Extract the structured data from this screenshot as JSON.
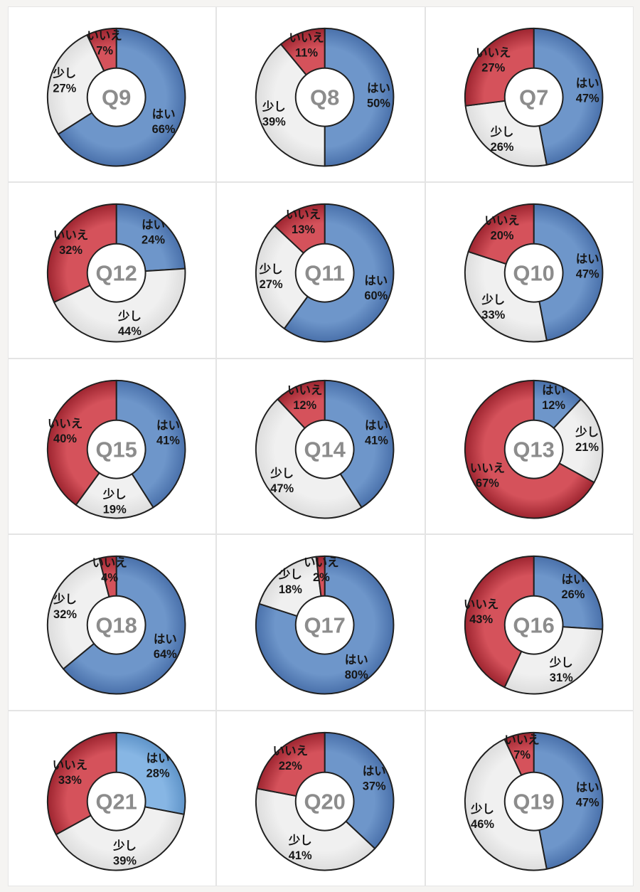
{
  "page": {
    "background": "#f5f4f2",
    "cell_background": "#ffffff",
    "grid_line_color": "#e4e4e4",
    "columns": 3,
    "rows": 5
  },
  "palette": {
    "blue": {
      "inner": "#6e96ca",
      "outer": "#4a71ab"
    },
    "lightblue": {
      "inner": "#87b6e4",
      "outer": "#5f94c9"
    },
    "gray": {
      "inner": "#f0f0f0",
      "outer": "#dddddd"
    },
    "red": {
      "inner": "#d5525b",
      "outer": "#9e2530"
    },
    "outline": "#202020",
    "center_text": "#8c8c8c",
    "label_text": "#161616"
  },
  "categories": [
    "はい",
    "少し",
    "いいえ"
  ],
  "chart_data": [
    {
      "type": "donut",
      "title": "Q9",
      "labels": [
        "はい",
        "少し",
        "いいえ"
      ],
      "values": [
        66,
        27,
        7
      ],
      "unit": "%",
      "colors": [
        "blue",
        "gray",
        "red"
      ]
    },
    {
      "type": "donut",
      "title": "Q8",
      "labels": [
        "はい",
        "少し",
        "いいえ"
      ],
      "values": [
        50,
        39,
        11
      ],
      "unit": "%",
      "colors": [
        "blue",
        "gray",
        "red"
      ]
    },
    {
      "type": "donut",
      "title": "Q7",
      "labels": [
        "はい",
        "少し",
        "いいえ"
      ],
      "values": [
        47,
        26,
        27
      ],
      "unit": "%",
      "colors": [
        "blue",
        "gray",
        "red"
      ]
    },
    {
      "type": "donut",
      "title": "Q12",
      "labels": [
        "はい",
        "少し",
        "いいえ"
      ],
      "values": [
        24,
        44,
        32
      ],
      "unit": "%",
      "colors": [
        "blue",
        "gray",
        "red"
      ]
    },
    {
      "type": "donut",
      "title": "Q11",
      "labels": [
        "はい",
        "少し",
        "いいえ"
      ],
      "values": [
        60,
        27,
        13
      ],
      "unit": "%",
      "colors": [
        "blue",
        "gray",
        "red"
      ]
    },
    {
      "type": "donut",
      "title": "Q10",
      "labels": [
        "はい",
        "少し",
        "いいえ"
      ],
      "values": [
        47,
        33,
        20
      ],
      "unit": "%",
      "colors": [
        "blue",
        "gray",
        "red"
      ]
    },
    {
      "type": "donut",
      "title": "Q15",
      "labels": [
        "はい",
        "少し",
        "いいえ"
      ],
      "values": [
        41,
        19,
        40
      ],
      "unit": "%",
      "colors": [
        "blue",
        "gray",
        "red"
      ]
    },
    {
      "type": "donut",
      "title": "Q14",
      "labels": [
        "はい",
        "少し",
        "いいえ"
      ],
      "values": [
        41,
        47,
        12
      ],
      "unit": "%",
      "colors": [
        "blue",
        "gray",
        "red"
      ]
    },
    {
      "type": "donut",
      "title": "Q13",
      "labels": [
        "はい",
        "少し",
        "いいえ"
      ],
      "values": [
        12,
        21,
        67
      ],
      "unit": "%",
      "colors": [
        "blue",
        "gray",
        "red"
      ]
    },
    {
      "type": "donut",
      "title": "Q18",
      "labels": [
        "はい",
        "少し",
        "いいえ"
      ],
      "values": [
        64,
        32,
        4
      ],
      "unit": "%",
      "colors": [
        "blue",
        "gray",
        "red"
      ]
    },
    {
      "type": "donut",
      "title": "Q17",
      "labels": [
        "はい",
        "少し",
        "いいえ"
      ],
      "values": [
        80,
        18,
        2
      ],
      "unit": "%",
      "colors": [
        "blue",
        "gray",
        "red"
      ]
    },
    {
      "type": "donut",
      "title": "Q16",
      "labels": [
        "はい",
        "少し",
        "いいえ"
      ],
      "values": [
        26,
        31,
        43
      ],
      "unit": "%",
      "colors": [
        "blue",
        "gray",
        "red"
      ]
    },
    {
      "type": "donut",
      "title": "Q21",
      "labels": [
        "はい",
        "少し",
        "いいえ"
      ],
      "values": [
        28,
        39,
        33
      ],
      "unit": "%",
      "colors": [
        "lightblue",
        "gray",
        "red"
      ]
    },
    {
      "type": "donut",
      "title": "Q20",
      "labels": [
        "はい",
        "少し",
        "いいえ"
      ],
      "values": [
        37,
        41,
        22
      ],
      "unit": "%",
      "colors": [
        "blue",
        "gray",
        "red"
      ]
    },
    {
      "type": "donut",
      "title": "Q19",
      "labels": [
        "はい",
        "少し",
        "いいえ"
      ],
      "values": [
        47,
        46,
        7
      ],
      "unit": "%",
      "colors": [
        "blue",
        "gray",
        "red"
      ]
    }
  ]
}
